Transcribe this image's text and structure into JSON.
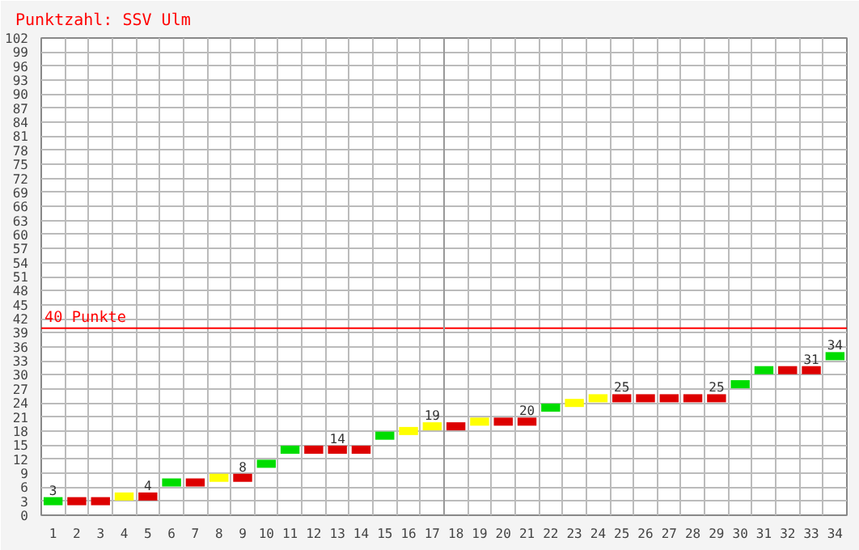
{
  "chart_data": {
    "type": "scatter",
    "title": "Punktzahl: SSV Ulm",
    "marker": "square",
    "x": [
      1,
      2,
      3,
      4,
      5,
      6,
      7,
      8,
      9,
      10,
      11,
      12,
      13,
      14,
      15,
      16,
      17,
      18,
      19,
      20,
      21,
      22,
      23,
      24,
      25,
      26,
      27,
      28,
      29,
      30,
      31,
      32,
      33,
      34
    ],
    "values": [
      3,
      3,
      3,
      4,
      4,
      7,
      7,
      8,
      8,
      11,
      14,
      14,
      14,
      14,
      17,
      18,
      19,
      19,
      20,
      20,
      20,
      23,
      24,
      25,
      25,
      25,
      25,
      25,
      25,
      28,
      31,
      31,
      31,
      34
    ],
    "colors": [
      "#00dd00",
      "#dd0000",
      "#dd0000",
      "#ffff00",
      "#dd0000",
      "#00dd00",
      "#dd0000",
      "#ffff00",
      "#dd0000",
      "#00dd00",
      "#00dd00",
      "#dd0000",
      "#dd0000",
      "#dd0000",
      "#00dd00",
      "#ffff00",
      "#ffff00",
      "#dd0000",
      "#ffff00",
      "#dd0000",
      "#dd0000",
      "#00dd00",
      "#ffff00",
      "#ffff00",
      "#dd0000",
      "#dd0000",
      "#dd0000",
      "#dd0000",
      "#dd0000",
      "#00dd00",
      "#00dd00",
      "#dd0000",
      "#dd0000",
      "#00dd00"
    ],
    "value_labels": [
      "3",
      null,
      null,
      null,
      "4",
      null,
      null,
      null,
      "8",
      null,
      null,
      null,
      "14",
      null,
      null,
      null,
      "19",
      null,
      null,
      null,
      "20",
      null,
      null,
      null,
      "25",
      null,
      null,
      null,
      "25",
      null,
      null,
      null,
      "31",
      "34"
    ],
    "xlim": [
      0.5,
      34.5
    ],
    "xticks": [
      1,
      2,
      3,
      4,
      5,
      6,
      7,
      8,
      9,
      10,
      11,
      12,
      13,
      14,
      15,
      16,
      17,
      18,
      19,
      20,
      21,
      22,
      23,
      24,
      25,
      26,
      27,
      28,
      29,
      30,
      31,
      32,
      33,
      34
    ],
    "ylim": [
      0,
      102
    ],
    "yticks": [
      0,
      3,
      6,
      9,
      12,
      15,
      18,
      21,
      24,
      27,
      30,
      33,
      36,
      39,
      42,
      45,
      48,
      51,
      54,
      57,
      60,
      63,
      66,
      69,
      72,
      75,
      78,
      81,
      84,
      87,
      90,
      93,
      96,
      99,
      102
    ],
    "grid": true,
    "ref_lines": [
      {
        "axis": "y",
        "value": 40,
        "label": "40 Punkte",
        "color": "#ff0000"
      },
      {
        "axis": "x",
        "value": 17.5,
        "color": "#999999"
      }
    ]
  }
}
